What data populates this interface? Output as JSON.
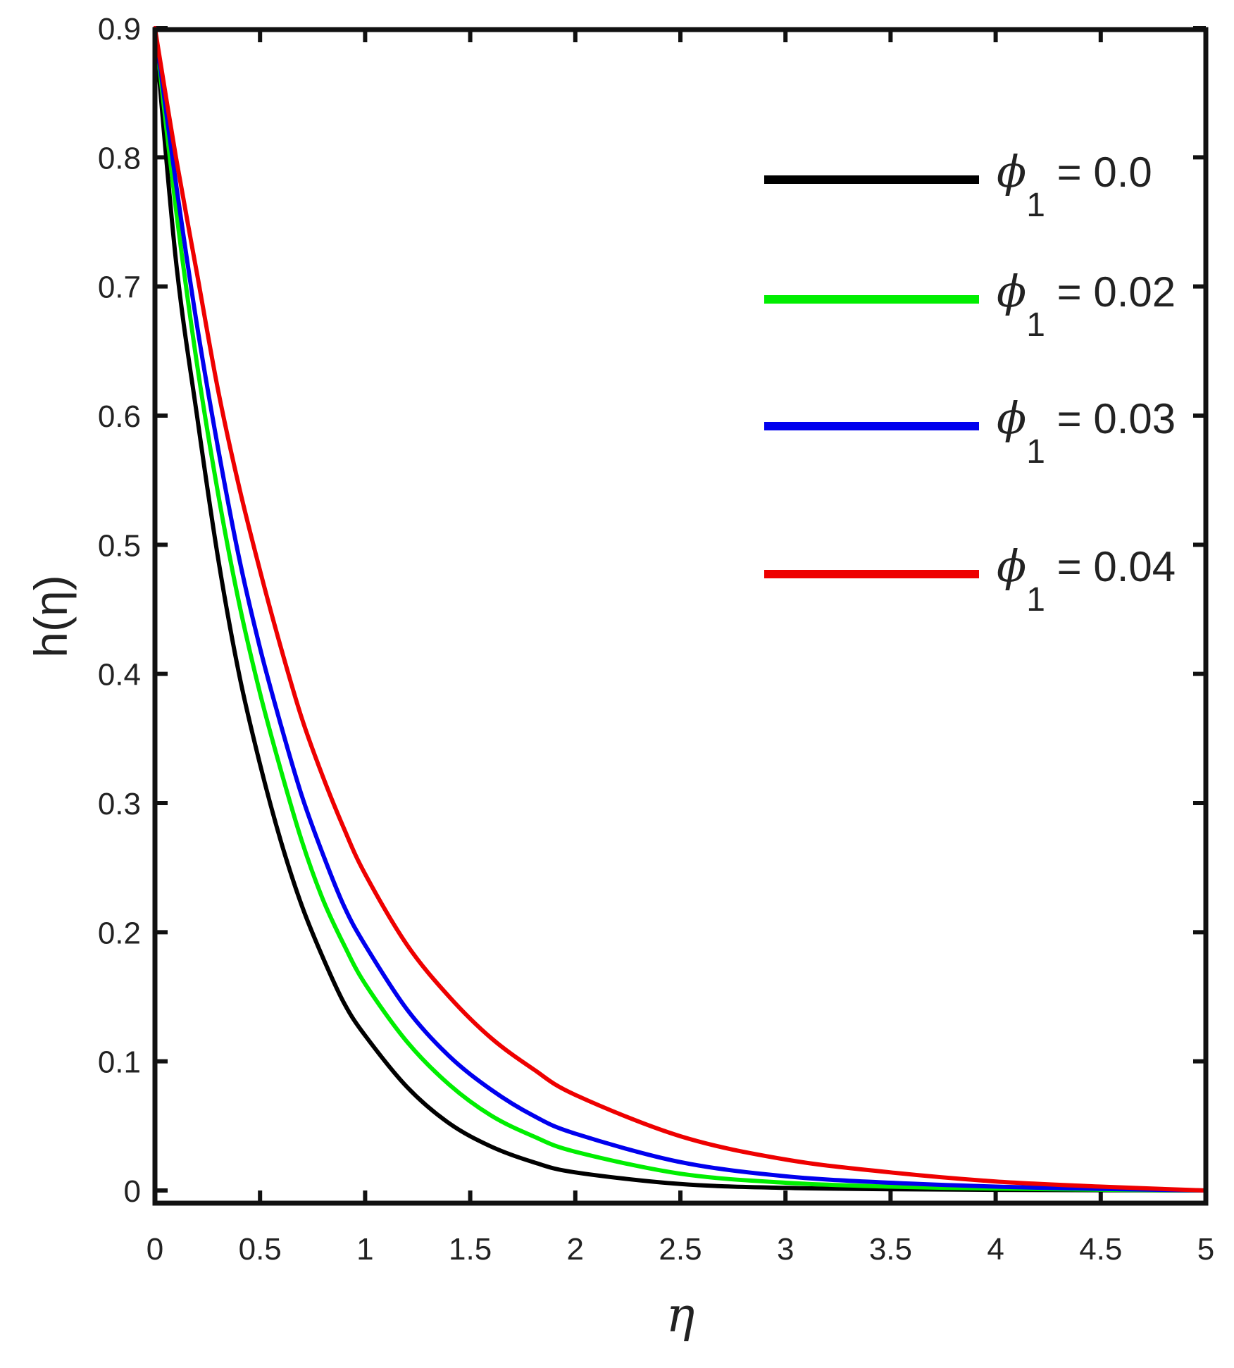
{
  "chart_data": {
    "type": "line",
    "title": "",
    "xlabel": "η",
    "ylabel": "h(η)",
    "xlim": [
      0,
      5
    ],
    "ylim": [
      0,
      0.9
    ],
    "xticks": [
      "0",
      "0.5",
      "1",
      "1.5",
      "2",
      "2.5",
      "3",
      "3.5",
      "4",
      "4.5",
      "5"
    ],
    "yticks": [
      "0",
      "0.1",
      "0.2",
      "0.3",
      "0.4",
      "0.5",
      "0.6",
      "0.7",
      "0.8",
      "0.9"
    ],
    "grid": false,
    "legend_position": "top-right",
    "series": [
      {
        "name": "ϕ1 = 0.0",
        "legend_symbol": "ϕ",
        "legend_subscript": "1",
        "legend_value": " = 0.0",
        "color": "#000000",
        "x": [
          0,
          0.1,
          0.2,
          0.3,
          0.4,
          0.5,
          0.6,
          0.7,
          0.8,
          0.9,
          1.0,
          1.2,
          1.4,
          1.6,
          1.8,
          2.0,
          2.5,
          3.0,
          3.5,
          4.0,
          4.5,
          5.0
        ],
        "y": [
          0.9,
          0.72,
          0.6,
          0.49,
          0.4,
          0.33,
          0.27,
          0.22,
          0.18,
          0.145,
          0.12,
          0.08,
          0.052,
          0.034,
          0.022,
          0.014,
          0.005,
          0.002,
          0.001,
          0.0005,
          0.0002,
          0
        ]
      },
      {
        "name": "ϕ1 = 0.02",
        "legend_symbol": "ϕ",
        "legend_subscript": "1",
        "legend_value": " = 0.02",
        "color": "#00ee00",
        "x": [
          0,
          0.1,
          0.2,
          0.3,
          0.4,
          0.5,
          0.6,
          0.7,
          0.8,
          0.9,
          1.0,
          1.2,
          1.4,
          1.6,
          1.8,
          2.0,
          2.5,
          3.0,
          3.5,
          4.0,
          4.5,
          5.0
        ],
        "y": [
          0.9,
          0.76,
          0.64,
          0.54,
          0.455,
          0.385,
          0.325,
          0.27,
          0.225,
          0.19,
          0.16,
          0.115,
          0.082,
          0.058,
          0.042,
          0.03,
          0.013,
          0.006,
          0.003,
          0.0015,
          0.0006,
          0
        ]
      },
      {
        "name": "ϕ1 = 0.03",
        "legend_symbol": "ϕ",
        "legend_subscript": "1",
        "legend_value": " = 0.03",
        "color": "#0000ee",
        "x": [
          0,
          0.1,
          0.2,
          0.3,
          0.4,
          0.5,
          0.6,
          0.7,
          0.8,
          0.9,
          1.0,
          1.2,
          1.4,
          1.6,
          1.8,
          2.0,
          2.5,
          3.0,
          3.5,
          4.0,
          4.5,
          5.0
        ],
        "y": [
          0.9,
          0.78,
          0.67,
          0.575,
          0.49,
          0.42,
          0.36,
          0.305,
          0.26,
          0.22,
          0.19,
          0.14,
          0.104,
          0.078,
          0.058,
          0.044,
          0.022,
          0.011,
          0.006,
          0.003,
          0.0012,
          0
        ]
      },
      {
        "name": "ϕ1 = 0.04",
        "legend_symbol": "ϕ",
        "legend_subscript": "1",
        "legend_value": " = 0.04",
        "color": "#ee0000",
        "x": [
          0,
          0.1,
          0.2,
          0.3,
          0.4,
          0.5,
          0.6,
          0.7,
          0.8,
          0.9,
          1.0,
          1.2,
          1.4,
          1.6,
          1.8,
          2.0,
          2.5,
          3.0,
          3.5,
          4.0,
          4.5,
          5.0
        ],
        "y": [
          0.9,
          0.8,
          0.71,
          0.62,
          0.545,
          0.48,
          0.42,
          0.365,
          0.32,
          0.28,
          0.245,
          0.19,
          0.15,
          0.118,
          0.094,
          0.074,
          0.042,
          0.024,
          0.014,
          0.007,
          0.003,
          0
        ]
      }
    ]
  }
}
